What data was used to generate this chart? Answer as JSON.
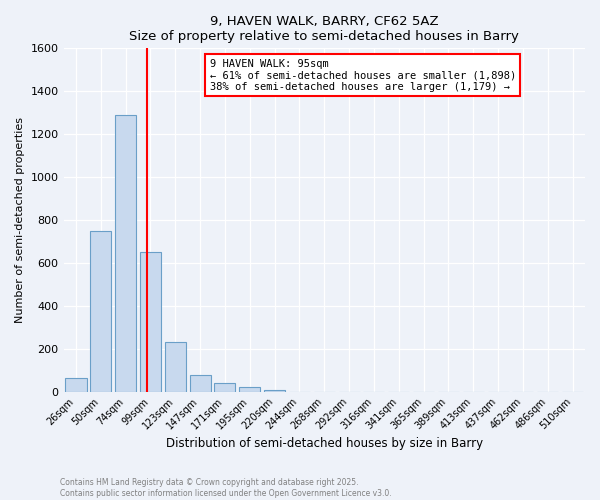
{
  "title1": "9, HAVEN WALK, BARRY, CF62 5AZ",
  "title2": "Size of property relative to semi-detached houses in Barry",
  "xlabel": "Distribution of semi-detached houses by size in Barry",
  "ylabel": "Number of semi-detached properties",
  "categories": [
    "26sqm",
    "50sqm",
    "74sqm",
    "99sqm",
    "123sqm",
    "147sqm",
    "171sqm",
    "195sqm",
    "220sqm",
    "244sqm",
    "268sqm",
    "292sqm",
    "316sqm",
    "341sqm",
    "365sqm",
    "389sqm",
    "413sqm",
    "437sqm",
    "462sqm",
    "486sqm",
    "510sqm"
  ],
  "values": [
    65,
    750,
    1290,
    650,
    230,
    80,
    42,
    20,
    10,
    0,
    0,
    0,
    0,
    0,
    0,
    0,
    0,
    0,
    0,
    0,
    0
  ],
  "bar_color": "#c8d9ee",
  "bar_edge_color": "#6a9fc8",
  "vline_color": "red",
  "annotation_text": "9 HAVEN WALK: 95sqm\n← 61% of semi-detached houses are smaller (1,898)\n38% of semi-detached houses are larger (1,179) →",
  "annotation_box_color": "white",
  "annotation_box_edge": "red",
  "ylim": [
    0,
    1600
  ],
  "yticks": [
    0,
    200,
    400,
    600,
    800,
    1000,
    1200,
    1400,
    1600
  ],
  "footer1": "Contains HM Land Registry data © Crown copyright and database right 2025.",
  "footer2": "Contains public sector information licensed under the Open Government Licence v3.0.",
  "background_color": "#eef2f9",
  "plot_bg_color": "#eef2f9"
}
